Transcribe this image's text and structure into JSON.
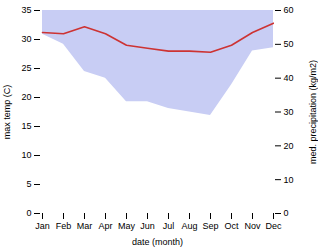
{
  "chart_data": {
    "type": "line",
    "categories": [
      "Jan",
      "Feb",
      "Mar",
      "Apr",
      "May",
      "Jun",
      "Jul",
      "Aug",
      "Sep",
      "Oct",
      "Nov",
      "Dec"
    ],
    "series": [
      {
        "type": "line",
        "color": "#cd3333",
        "values": [
          31.2,
          31.0,
          32.2,
          31.0,
          29.0,
          28.5,
          28.0,
          28.0,
          27.8,
          29.0,
          31.2,
          32.8
        ]
      },
      {
        "type": "area",
        "axis": "y2",
        "color": "#c8cdf4",
        "values": [
          53,
          50,
          42,
          40,
          33,
          33,
          31,
          30,
          29,
          38,
          48,
          49
        ]
      }
    ],
    "xlabel": "date (month)",
    "ylabel": "max temp (C)",
    "y2label": "med. precipitation (kg/m2)",
    "ylim": [
      0,
      35
    ],
    "yticks": [
      0,
      5,
      10,
      15,
      20,
      25,
      30,
      35
    ],
    "y2lim": [
      0,
      60
    ],
    "y2ticks": [
      0,
      10,
      20,
      30,
      40,
      50,
      60
    ],
    "grid": false
  }
}
